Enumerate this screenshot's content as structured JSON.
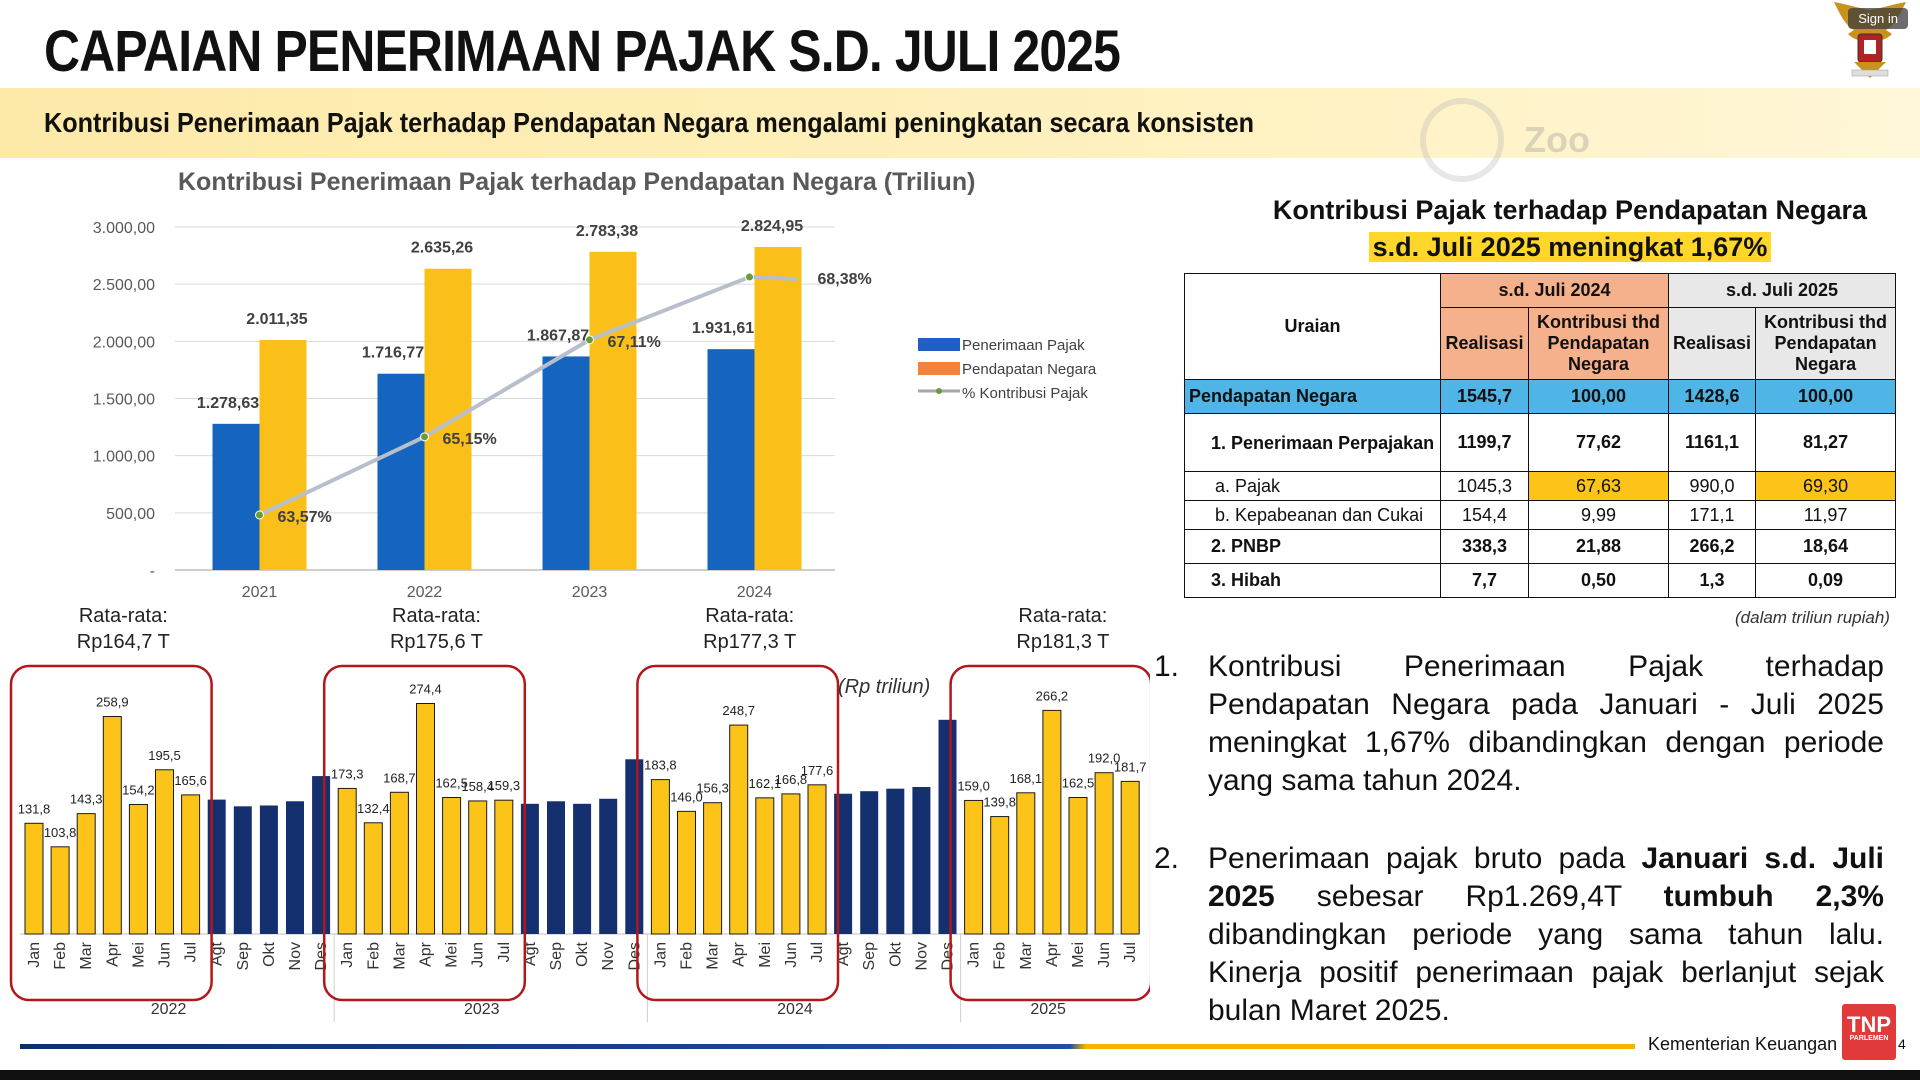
{
  "header": {
    "title": "CAPAIAN PENERIMAAN PAJAK S.D. JULI 2025",
    "subtitle": "Kontribusi Penerimaan Pajak terhadap Pendapatan Negara mengalami peningkatan secara konsisten",
    "signin_label": "Sign in",
    "watermark": "Zoo"
  },
  "chart_data": [
    {
      "type": "bar",
      "title": "Kontribusi Penerimaan Pajak terhadap Pendapatan Negara (Triliun)",
      "categories": [
        "2021",
        "2022",
        "2023",
        "2024"
      ],
      "series": [
        {
          "name": "Penerimaan Pajak",
          "values": [
            1278.63,
            1716.77,
            1867.87,
            1931.61
          ],
          "labels": [
            "1.278,63",
            "1.716,77",
            "1.867,87",
            "1.931,61"
          ],
          "color": "#1565c0"
        },
        {
          "name": "Pendapatan Negara",
          "values": [
            2011.35,
            2635.26,
            2783.38,
            2824.95
          ],
          "labels": [
            "2.011,35",
            "2.635,26",
            "2.783,38",
            "2.824,95"
          ],
          "color": "#fbbf1a"
        },
        {
          "name": "% Kontribusi Pajak",
          "type": "line",
          "values": [
            63.57,
            65.15,
            67.11,
            68.38
          ],
          "labels": [
            "63,57%",
            "65,15%",
            "67,11%",
            "68,38%"
          ],
          "color": "#b8bfcc"
        }
      ],
      "legend_colors": [
        "#1f5fc8",
        "#f4823a",
        "#a6a6a6"
      ],
      "legend_placement": "right",
      "yticks": [
        "-",
        "500,00",
        "1.000,00",
        "1.500,00",
        "2.000,00",
        "2.500,00",
        "3.000,00"
      ],
      "ylim": [
        0,
        3000
      ],
      "grid": true
    },
    {
      "type": "bar",
      "unit_note": "(Rp triliun)",
      "years": [
        "2022",
        "2023",
        "2024",
        "2025"
      ],
      "months": [
        "Jan",
        "Feb",
        "Mar",
        "Apr",
        "Mei",
        "Jun",
        "Jul",
        "Agt",
        "Sep",
        "Okt",
        "Nov",
        "Des"
      ],
      "averages": [
        "Rata-rata:\nRp164,7 T",
        "Rata-rata:\nRp175,6 T",
        "Rata-rata:\nRp177,3 T",
        "Rata-rata:\nRp181,3 T"
      ],
      "values": [
        [
          131.8,
          103.8,
          143.3,
          258.9,
          154.2,
          195.5,
          165.6,
          160,
          152,
          153,
          158,
          188
        ],
        [
          173.3,
          132.4,
          168.7,
          274.4,
          162.5,
          158.4,
          159.3,
          155,
          158,
          155,
          161,
          208
        ],
        [
          183.8,
          146.0,
          156.3,
          248.7,
          162.1,
          166.8,
          177.6,
          167,
          170,
          173,
          175,
          255
        ],
        [
          159.0,
          139.8,
          168.1,
          266.2,
          162.5,
          192.0,
          181.7
        ]
      ],
      "labels": [
        [
          "131,8",
          "103,8",
          "143,3",
          "258,9",
          "154,2",
          "195,5",
          "165,6"
        ],
        [
          "173,3",
          "132,4",
          "168,7",
          "274,4",
          "162,5",
          "158,4",
          "159,3"
        ],
        [
          "183,8",
          "146,0",
          "156,3",
          "248,7",
          "162,1",
          "166,8",
          "177,6"
        ],
        [
          "159,0",
          "139,8",
          "168,1",
          "266,2",
          "162,5",
          "192,0",
          "181,7"
        ]
      ],
      "colors": {
        "highlight": "#fcc419",
        "other": "#14306e",
        "box": "#b3161b"
      }
    }
  ],
  "table": {
    "title_line1": "Kontribusi Pajak terhadap Pendapatan Negara",
    "title_line2": "s.d. Juli 2025 meningkat 1,67%",
    "col_uraian": "Uraian",
    "period_2024": "s.d. Juli 2024",
    "period_2025": "s.d. Juli 2025",
    "col_realisasi": "Realisasi",
    "col_kontribusi": "Kontribusi thd Pendapatan Negara",
    "rows": [
      {
        "label": "Pendapatan Negara",
        "r24": "1545,7",
        "k24": "100,00",
        "r25": "1428,6",
        "k25": "100,00"
      },
      {
        "label": "1. Penerimaan Perpajakan",
        "r24": "1199,7",
        "k24": "77,62",
        "r25": "1161,1",
        "k25": "81,27"
      },
      {
        "label": "a. Pajak",
        "r24": "1045,3",
        "k24": "67,63",
        "r25": "990,0",
        "k25": "69,30"
      },
      {
        "label": "b. Kepabeanan dan Cukai",
        "r24": "154,4",
        "k24": "9,99",
        "r25": "171,1",
        "k25": "11,97"
      },
      {
        "label": "2. PNBP",
        "r24": "338,3",
        "k24": "21,88",
        "r25": "266,2",
        "k25": "18,64"
      },
      {
        "label": "3. Hibah",
        "r24": "7,7",
        "k24": "0,50",
        "r25": "1,3",
        "k25": "0,09"
      }
    ],
    "unit_note": "(dalam triliun rupiah)"
  },
  "notes": [
    {
      "num": "1.",
      "text": "Kontribusi Penerimaan Pajak terhadap Pendapatan Negara pada Januari - Juli 2025 meningkat 1,67% dibandingkan dengan periode yang sama tahun 2024."
    },
    {
      "num": "2.",
      "t1": "Penerimaan pajak bruto pada ",
      "b1": "Januari s.d. Juli 2025",
      "t2": " sebesar Rp1.269,4T ",
      "b2": "tumbuh 2,3%",
      "t3": " dibandingkan periode yang sama tahun lalu. Kinerja positif penerimaan pajak berlanjut sejak bulan Maret 2025."
    }
  ],
  "footer": {
    "org": "Kementerian Keuangan",
    "page_num": "4",
    "logo_text": "TNP",
    "logo_sub": "PARLEMEN"
  }
}
